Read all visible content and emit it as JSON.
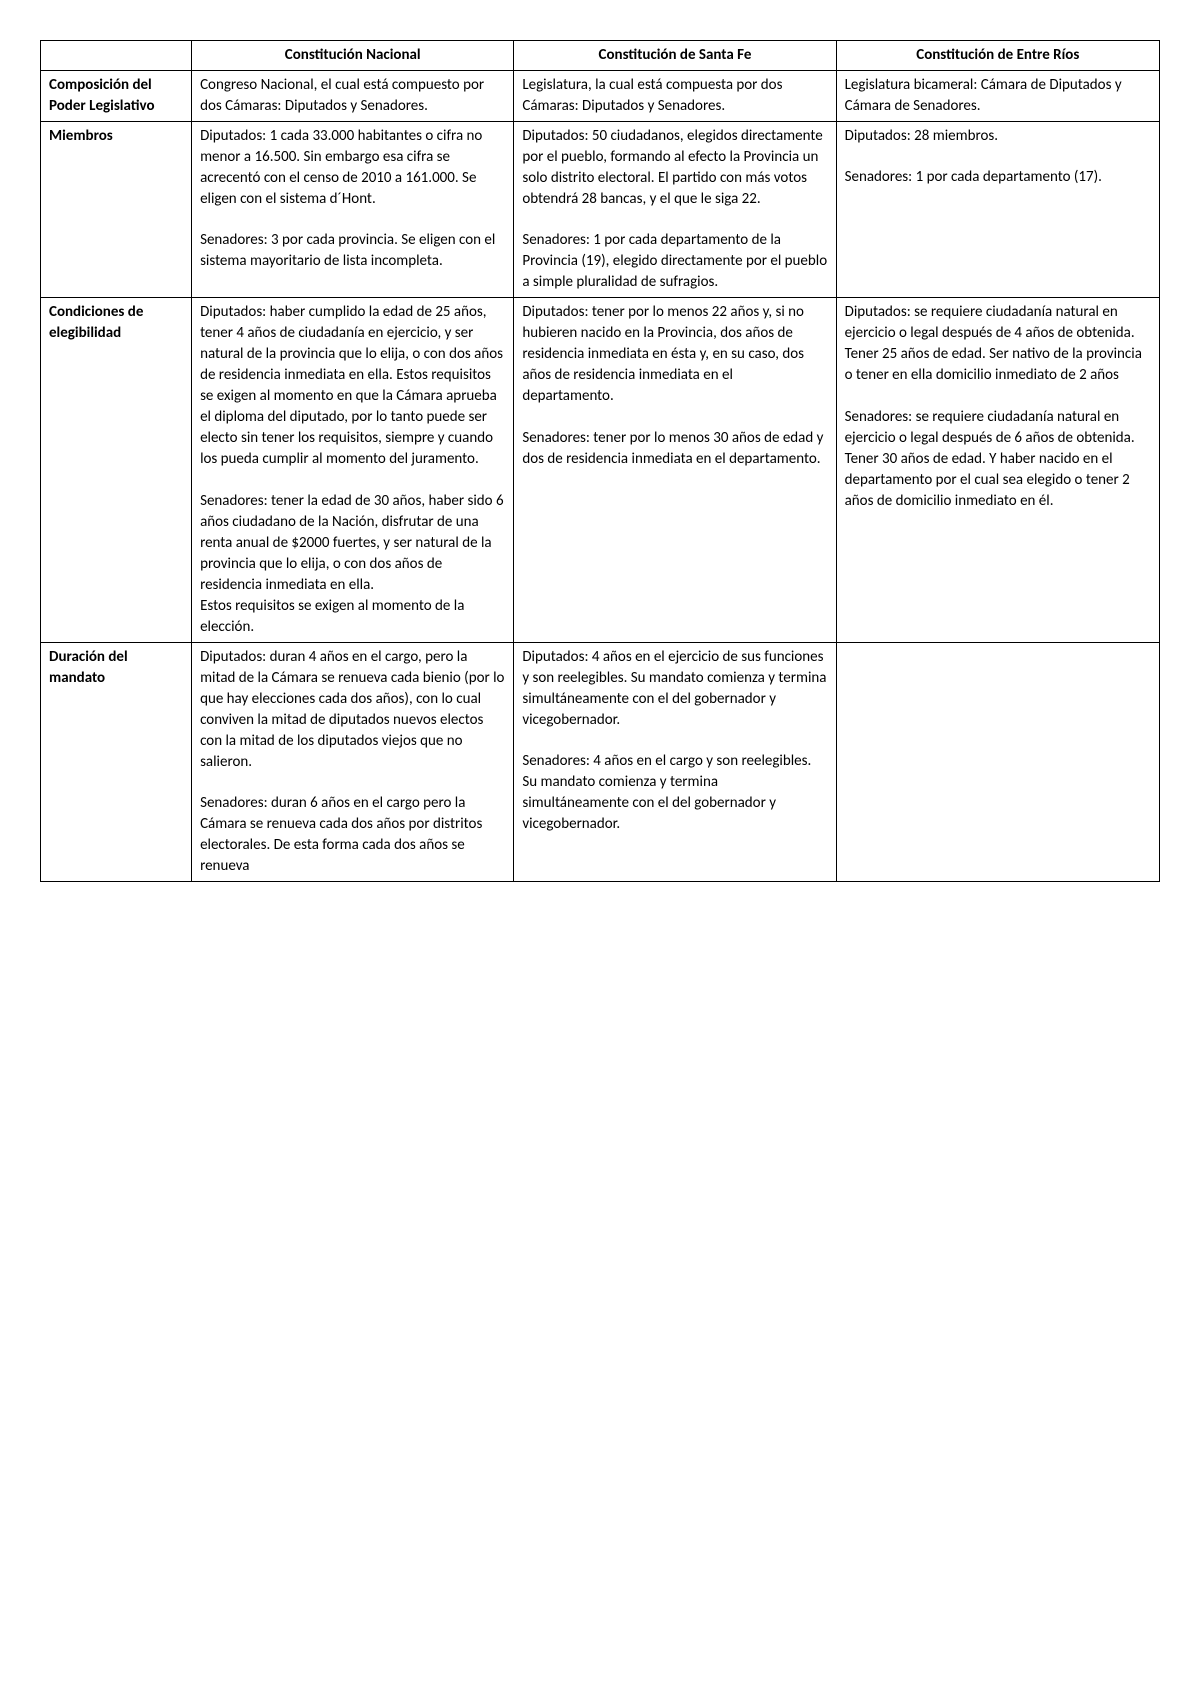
{
  "headers": {
    "blank": "",
    "col1": "Constitución Nacional",
    "col2": "Constitución de Santa Fe",
    "col3": "Constitución de Entre Ríos"
  },
  "rows": [
    {
      "label": "Composición del Poder Legislativo",
      "c1": [
        "Congreso Nacional, el cual está compuesto por dos Cámaras: Diputados y Senadores."
      ],
      "c2": [
        "Legislatura, la cual está compuesta por dos Cámaras: Diputados y Senadores."
      ],
      "c3": [
        "Legislatura bicameral: Cámara de Diputados y Cámara de Senadores."
      ]
    },
    {
      "label": "Miembros",
      "c1": [
        "Diputados: 1 cada 33.000 habitantes o cifra no menor a 16.500. Sin embargo esa cifra se acrecentó con el censo de 2010 a 161.000.  Se eligen con el sistema d´Hont.",
        "Senadores: 3 por cada provincia. Se eligen con el sistema mayoritario de lista incompleta."
      ],
      "c2": [
        "Diputados: 50 ciudadanos, elegidos directamente por el pueblo, formando al efecto la Provincia un solo distrito electoral. El partido con más votos obtendrá 28 bancas, y el que le siga 22.",
        "Senadores: 1 por cada departamento de la Provincia (19), elegido directamente por el pueblo a simple pluralidad de sufragios."
      ],
      "c3": [
        "Diputados: 28 miembros.",
        "Senadores: 1 por cada departamento (17)."
      ]
    },
    {
      "label": "Condiciones de elegibilidad",
      "c1": [
        "Diputados: haber cumplido la edad de 25 años, tener 4 años de ciudadanía en ejercicio, y ser natural de la provincia que lo elija, o con dos años de residencia inmediata en ella. Estos requisitos se exigen al momento en que la Cámara aprueba el diploma del diputado, por lo tanto puede ser electo sin tener los requisitos, siempre y cuando los pueda cumplir al momento del juramento.",
        "Senadores: tener la edad de 30 años, haber sido 6 años ciudadano de la Nación, disfrutar de una renta anual de $2000 fuertes, y ser natural de la provincia que lo elija, o con dos años de residencia inmediata en ella.\nEstos requisitos se exigen al momento de la elección."
      ],
      "c2": [
        "Diputados: tener por lo menos 22 años y, si no hubieren nacido en la Provincia, dos años de residencia inmediata en ésta y, en su caso, dos años de residencia inmediata en el departamento.",
        "Senadores: tener por lo menos 30 años de edad y dos de residencia inmediata en el departamento."
      ],
      "c3": [
        "Diputados: se requiere ciudadanía natural en ejercicio o legal después de 4 años de obtenida. Tener 25 años de edad. Ser nativo de la provincia o tener en ella domicilio inmediato de 2 años",
        "Senadores: se requiere ciudadanía natural en ejercicio o legal después de 6 años de obtenida. Tener 30 años de edad. Y haber nacido en el departamento por el cual sea elegido o tener 2 años de domicilio inmediato en él."
      ]
    },
    {
      "label": "Duración del mandato",
      "c1": [
        "Diputados: duran 4 años en el cargo, pero la mitad de la Cámara se renueva cada bienio (por lo que hay elecciones cada dos años), con lo cual conviven la mitad de diputados nuevos electos con la mitad de los diputados viejos que no salieron.",
        "Senadores: duran 6 años en el cargo pero la Cámara se renueva cada dos años por distritos electorales. De esta forma cada dos años se renueva"
      ],
      "c2": [
        "Diputados: 4 años en el ejercicio de sus funciones y son reelegibles. Su mandato comienza y termina simultáneamente con el del gobernador y vicegobernador.",
        "Senadores: 4 años en el cargo y son reelegibles. Su mandato comienza y termina simultáneamente con el del gobernador y vicegobernador."
      ],
      "c3": [
        ""
      ]
    }
  ]
}
